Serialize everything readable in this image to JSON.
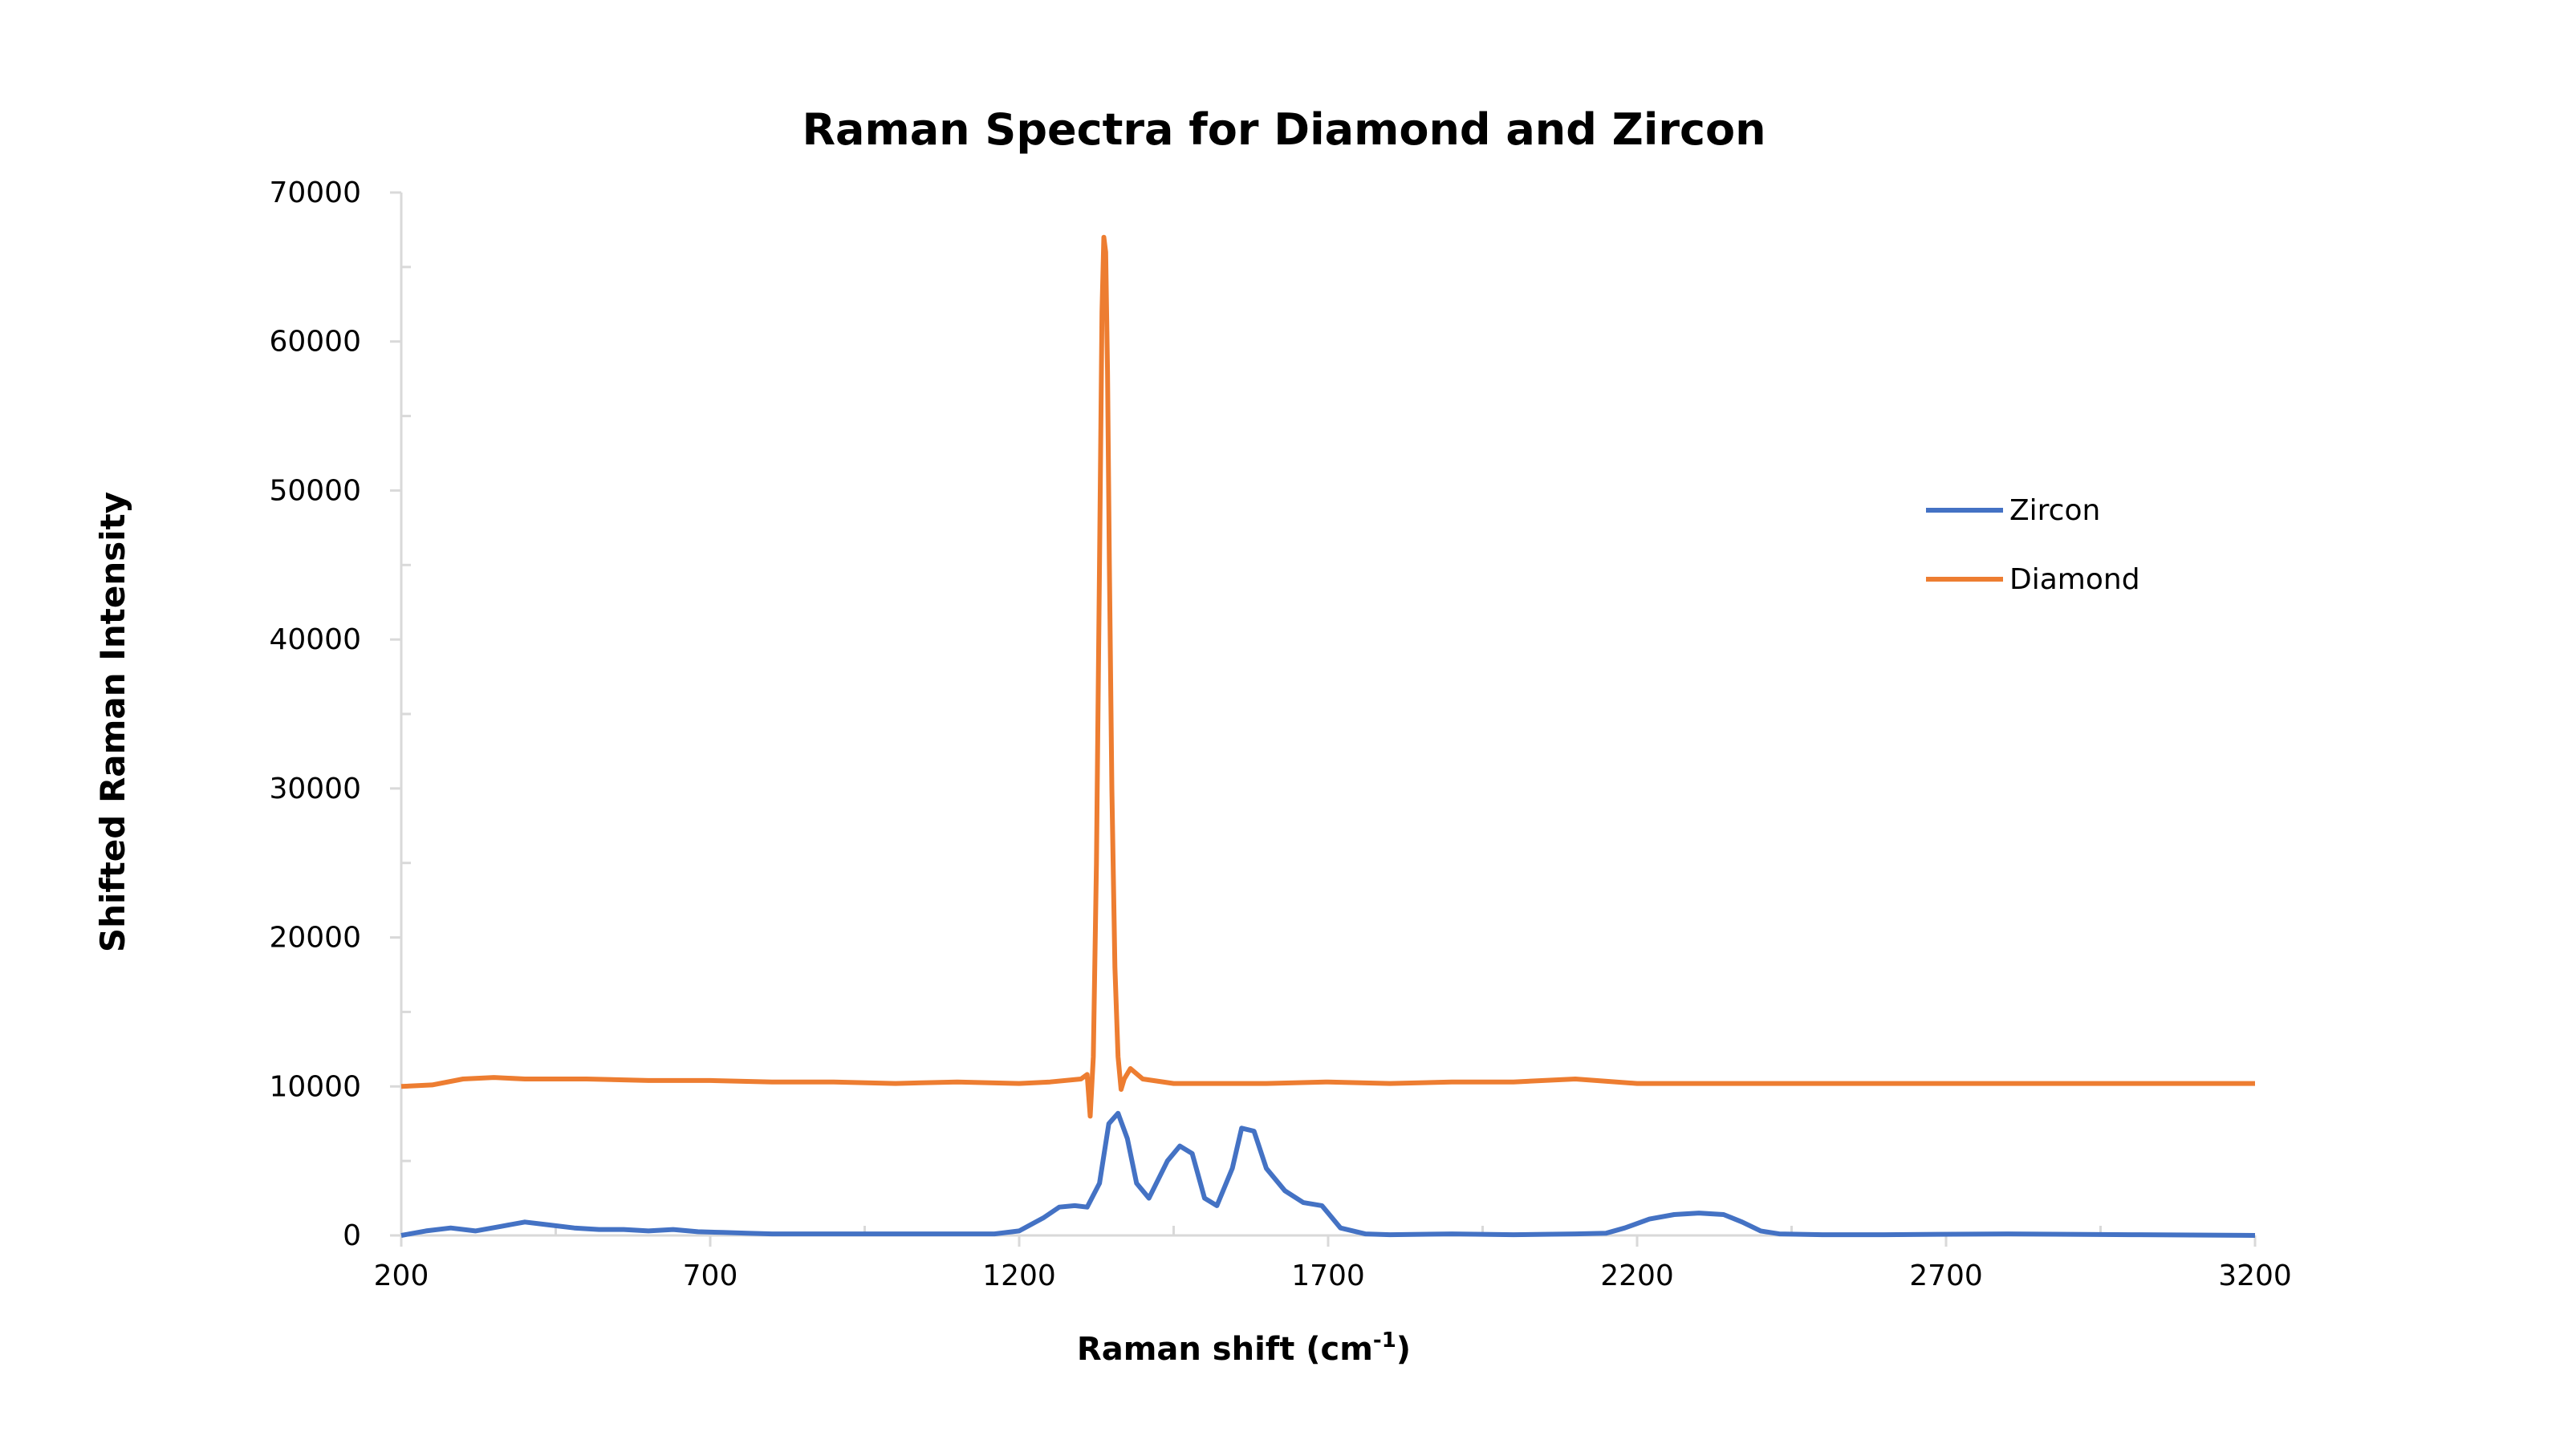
{
  "chart_data": {
    "type": "line",
    "title": "Raman Spectra for Diamond and Zircon",
    "xlabel": "Raman shift (cm",
    "xlabel_sup": "-1",
    "xlabel_end": ")",
    "ylabel": "Shifted Raman Intensity",
    "xlim": [
      200,
      3200
    ],
    "ylim": [
      0,
      70000
    ],
    "xticks": [
      "200",
      "700",
      "1200",
      "1700",
      "2200",
      "2700",
      "3200"
    ],
    "yticks": [
      "0",
      "10000",
      "20000",
      "30000",
      "40000",
      "50000",
      "60000",
      "70000"
    ],
    "grid": false,
    "legend_position": "right",
    "series": [
      {
        "name": "Zircon",
        "color": "#4472C4",
        "x": [
          200,
          240,
          280,
          320,
          360,
          400,
          440,
          480,
          520,
          560,
          600,
          640,
          680,
          720,
          760,
          800,
          900,
          1000,
          1100,
          1160,
          1200,
          1240,
          1265,
          1290,
          1310,
          1330,
          1345,
          1360,
          1375,
          1390,
          1410,
          1440,
          1460,
          1480,
          1500,
          1520,
          1545,
          1560,
          1580,
          1600,
          1630,
          1660,
          1690,
          1720,
          1760,
          1800,
          1900,
          2000,
          2100,
          2150,
          2180,
          2220,
          2260,
          2300,
          2340,
          2370,
          2400,
          2430,
          2500,
          2600,
          2800,
          3000,
          3200
        ],
        "y": [
          0,
          300,
          500,
          300,
          600,
          900,
          700,
          500,
          400,
          400,
          300,
          400,
          250,
          200,
          150,
          100,
          100,
          100,
          100,
          100,
          300,
          1200,
          1900,
          2000,
          1900,
          3500,
          7500,
          8200,
          6500,
          3500,
          2500,
          5000,
          6000,
          5500,
          2500,
          2000,
          4500,
          7200,
          7000,
          4500,
          3000,
          2200,
          2000,
          500,
          100,
          50,
          100,
          50,
          100,
          150,
          500,
          1100,
          1400,
          1500,
          1400,
          900,
          300,
          100,
          50,
          50,
          100,
          50,
          0
        ]
      },
      {
        "name": "Diamond",
        "color": "#ED7D31",
        "x": [
          200,
          250,
          300,
          350,
          400,
          500,
          600,
          700,
          800,
          900,
          1000,
          1100,
          1200,
          1250,
          1300,
          1310,
          1315,
          1320,
          1325,
          1330,
          1334,
          1337,
          1340,
          1343,
          1346,
          1350,
          1355,
          1360,
          1365,
          1370,
          1380,
          1400,
          1450,
          1500,
          1600,
          1700,
          1800,
          1900,
          2000,
          2100,
          2200,
          2400,
          2600,
          2800,
          3000,
          3200
        ],
        "y": [
          10000,
          10100,
          10500,
          10600,
          10500,
          10500,
          10400,
          10400,
          10300,
          10300,
          10200,
          10300,
          10200,
          10300,
          10500,
          10800,
          8000,
          12000,
          25000,
          45000,
          62000,
          67000,
          66000,
          58000,
          45000,
          30000,
          18000,
          12000,
          9800,
          10500,
          11200,
          10500,
          10200,
          10200,
          10200,
          10300,
          10200,
          10300,
          10300,
          10500,
          10200,
          10200,
          10200,
          10200,
          10200,
          10200
        ]
      }
    ]
  }
}
